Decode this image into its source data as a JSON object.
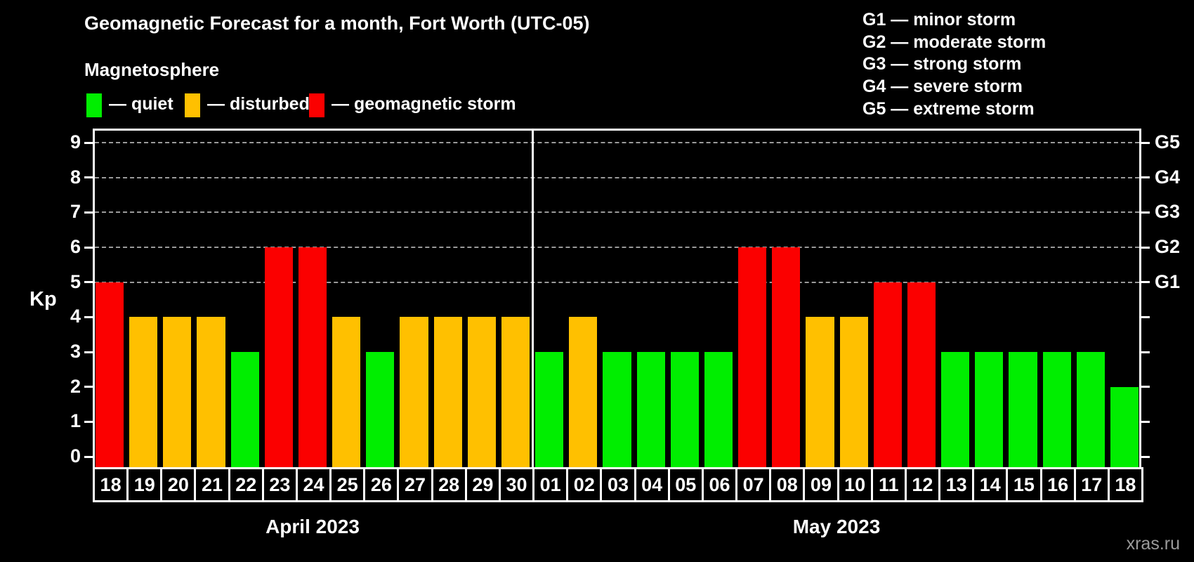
{
  "title": "Geomagnetic Forecast for a month, Fort Worth (UTC-05)",
  "subtitle": "Magnetosphere",
  "legend": {
    "items": [
      {
        "key": "quiet",
        "label": "— quiet",
        "color": "#00ee00"
      },
      {
        "key": "disturbed",
        "label": "— disturbed",
        "color": "#ffc000"
      },
      {
        "key": "storm",
        "label": "— geomagnetic storm",
        "color": "#fb0000"
      }
    ]
  },
  "g_scale_legend": [
    "G1 — minor storm",
    "G2 — moderate storm",
    "G3 — strong storm",
    "G4 — severe storm",
    "G5 — extreme storm"
  ],
  "watermark": "xras.ru",
  "chart_data": {
    "type": "bar",
    "title": "Geomagnetic Forecast for a month, Fort Worth (UTC-05)",
    "ylabel": "Kp",
    "ylim": [
      0,
      9.4
    ],
    "yticks": [
      0,
      1,
      2,
      3,
      4,
      5,
      6,
      7,
      8,
      9
    ],
    "gridlines_at": [
      5,
      6,
      7,
      8,
      9
    ],
    "grid": "dashed, only at storm levels G1–G5",
    "legend_position": "top",
    "right_axis_labels": [
      {
        "kp": 5,
        "label": "G1"
      },
      {
        "kp": 6,
        "label": "G2"
      },
      {
        "kp": 7,
        "label": "G3"
      },
      {
        "kp": 8,
        "label": "G4"
      },
      {
        "kp": 9,
        "label": "G5"
      }
    ],
    "colors": {
      "quiet": "#00ee00",
      "disturbed": "#ffc000",
      "storm": "#fb0000"
    },
    "months": [
      {
        "label": "April 2023",
        "days": [
          {
            "day": "18",
            "kp": 5,
            "level": "storm"
          },
          {
            "day": "19",
            "kp": 4,
            "level": "disturbed"
          },
          {
            "day": "20",
            "kp": 4,
            "level": "disturbed"
          },
          {
            "day": "21",
            "kp": 4,
            "level": "disturbed"
          },
          {
            "day": "22",
            "kp": 3,
            "level": "quiet"
          },
          {
            "day": "23",
            "kp": 6,
            "level": "storm"
          },
          {
            "day": "24",
            "kp": 6,
            "level": "storm"
          },
          {
            "day": "25",
            "kp": 4,
            "level": "disturbed"
          },
          {
            "day": "26",
            "kp": 3,
            "level": "quiet"
          },
          {
            "day": "27",
            "kp": 4,
            "level": "disturbed"
          },
          {
            "day": "28",
            "kp": 4,
            "level": "disturbed"
          },
          {
            "day": "29",
            "kp": 4,
            "level": "disturbed"
          },
          {
            "day": "30",
            "kp": 4,
            "level": "disturbed"
          }
        ]
      },
      {
        "label": "May 2023",
        "days": [
          {
            "day": "01",
            "kp": 3,
            "level": "quiet"
          },
          {
            "day": "02",
            "kp": 4,
            "level": "disturbed"
          },
          {
            "day": "03",
            "kp": 3,
            "level": "quiet"
          },
          {
            "day": "04",
            "kp": 3,
            "level": "quiet"
          },
          {
            "day": "05",
            "kp": 3,
            "level": "quiet"
          },
          {
            "day": "06",
            "kp": 3,
            "level": "quiet"
          },
          {
            "day": "07",
            "kp": 6,
            "level": "storm"
          },
          {
            "day": "08",
            "kp": 6,
            "level": "storm"
          },
          {
            "day": "09",
            "kp": 4,
            "level": "disturbed"
          },
          {
            "day": "10",
            "kp": 4,
            "level": "disturbed"
          },
          {
            "day": "11",
            "kp": 5,
            "level": "storm"
          },
          {
            "day": "12",
            "kp": 5,
            "level": "storm"
          },
          {
            "day": "13",
            "kp": 3,
            "level": "quiet"
          },
          {
            "day": "14",
            "kp": 3,
            "level": "quiet"
          },
          {
            "day": "15",
            "kp": 3,
            "level": "quiet"
          },
          {
            "day": "16",
            "kp": 3,
            "level": "quiet"
          },
          {
            "day": "17",
            "kp": 3,
            "level": "quiet"
          },
          {
            "day": "18",
            "kp": 2,
            "level": "quiet"
          }
        ]
      }
    ]
  }
}
